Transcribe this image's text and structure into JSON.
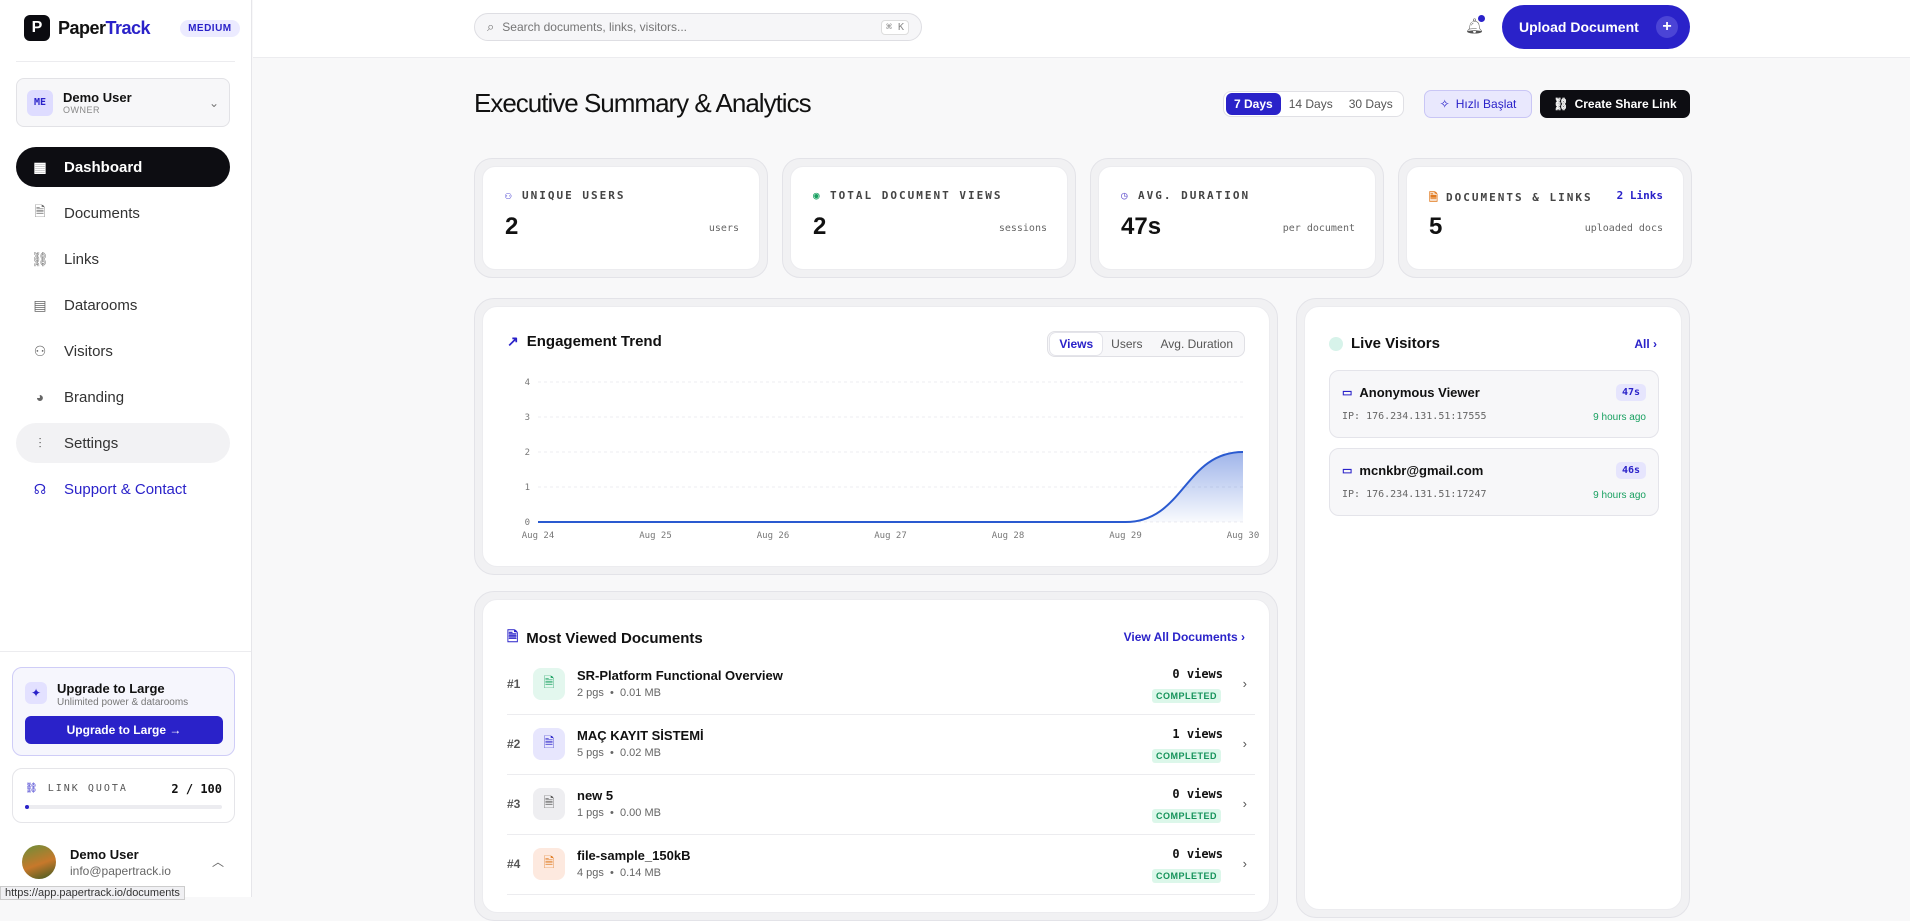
{
  "app": {
    "logo_letter": "P",
    "name_a": "Paper",
    "name_b": "Track",
    "plan": "MEDIUM"
  },
  "account": {
    "initials": "ME",
    "name": "Demo User",
    "role": "OWNER"
  },
  "nav": [
    {
      "label": "Dashboard",
      "icon": "grid-icon"
    },
    {
      "label": "Documents",
      "icon": "document-icon"
    },
    {
      "label": "Links",
      "icon": "link-icon"
    },
    {
      "label": "Datarooms",
      "icon": "dataroom-icon"
    },
    {
      "label": "Visitors",
      "icon": "users-icon"
    },
    {
      "label": "Branding",
      "icon": "palette-icon"
    },
    {
      "label": "Settings",
      "icon": "sliders-icon"
    },
    {
      "label": "Support & Contact",
      "icon": "headset-icon"
    }
  ],
  "upgrade": {
    "title": "Upgrade to Large",
    "subtitle": "Unlimited power & datarooms",
    "button": "Upgrade to Large"
  },
  "quota": {
    "label": "LINK QUOTA",
    "value": "2 / 100",
    "fraction": 0.02
  },
  "profile": {
    "name": "Demo User",
    "email": "info@papertrack.io"
  },
  "status_url": "https://app.papertrack.io/documents",
  "topbar": {
    "search_placeholder": "Search documents, links, visitors...",
    "shortcut": "⌘ K",
    "upload": "Upload Document"
  },
  "page": {
    "title": "Executive Summary & Analytics",
    "ranges": [
      "7 Days",
      "14 Days",
      "30 Days"
    ],
    "quick": "Hızlı Başlat",
    "share": "Create Share Link"
  },
  "stats": [
    {
      "label": "UNIQUE USERS",
      "value": "2",
      "sub": "users",
      "color": "#2a22c9"
    },
    {
      "label": "TOTAL DOCUMENT VIEWS",
      "value": "2",
      "sub": "sessions",
      "color": "#18a060"
    },
    {
      "label": "AVG. DURATION",
      "value": "47s",
      "sub": "per document",
      "color": "#6a5ad0"
    },
    {
      "label": "DOCUMENTS & LINKS",
      "value": "5",
      "sub": "uploaded docs",
      "extra": "2 Links",
      "color": "#e07a20"
    }
  ],
  "trend": {
    "title": "Engagement Trend",
    "tabs": [
      "Views",
      "Users",
      "Avg. Duration"
    ]
  },
  "chart_data": {
    "type": "area",
    "x": [
      "Aug 24",
      "Aug 25",
      "Aug 26",
      "Aug 27",
      "Aug 28",
      "Aug 29",
      "Aug 30"
    ],
    "series": [
      {
        "values": [
          0,
          0,
          0,
          0,
          0,
          0,
          2
        ]
      }
    ],
    "ylim": [
      0,
      4
    ],
    "yticks": [
      "0",
      "1",
      "2",
      "3",
      "4"
    ],
    "grid": true,
    "color": "#2a5ad0"
  },
  "live": {
    "title": "Live Visitors",
    "all": "All",
    "visitors": [
      {
        "name": "Anonymous Viewer",
        "ip": "IP: 176.234.131.51:17555",
        "duration": "47s",
        "time": "9 hours ago"
      },
      {
        "name": "mcnkbr@gmail.com",
        "ip": "IP: 176.234.131.51:17247",
        "duration": "46s",
        "time": "9 hours ago"
      }
    ]
  },
  "docs": {
    "title": "Most Viewed Documents",
    "view_all": "View All Documents",
    "items": [
      {
        "rank": "#1",
        "name": "SR-Platform Functional Overview",
        "pages": "2 pgs",
        "size": "0.01 MB",
        "views": "0 views",
        "status": "COMPLETED",
        "bg": "#e3f7ee",
        "fg": "#18a060"
      },
      {
        "rank": "#2",
        "name": "MAÇ KAYIT SİSTEMİ",
        "pages": "5 pgs",
        "size": "0.02 MB",
        "views": "1 views",
        "status": "COMPLETED",
        "bg": "#e7e6fd",
        "fg": "#2a22c9"
      },
      {
        "rank": "#3",
        "name": "new 5",
        "pages": "1 pgs",
        "size": "0.00 MB",
        "views": "0 views",
        "status": "COMPLETED",
        "bg": "#eeeef1",
        "fg": "#555"
      },
      {
        "rank": "#4",
        "name": "file-sample_150kB",
        "pages": "4 pgs",
        "size": "0.14 MB",
        "views": "0 views",
        "status": "COMPLETED",
        "bg": "#fde9df",
        "fg": "#e07a20"
      }
    ]
  }
}
